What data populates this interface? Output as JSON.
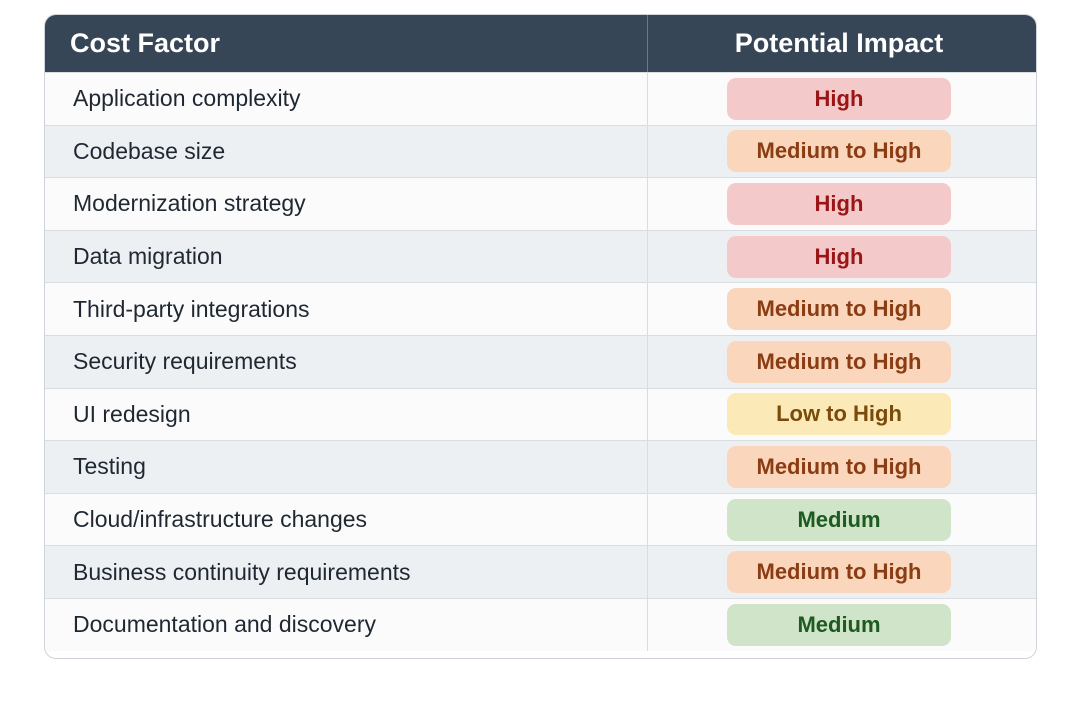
{
  "table": {
    "headers": {
      "factor": "Cost Factor",
      "impact": "Potential Impact"
    },
    "rows": [
      {
        "factor": "Application complexity",
        "impact": "High",
        "level": "high"
      },
      {
        "factor": "Codebase size",
        "impact": "Medium to High",
        "level": "medium-high"
      },
      {
        "factor": "Modernization strategy",
        "impact": "High",
        "level": "high"
      },
      {
        "factor": "Data migration",
        "impact": "High",
        "level": "high"
      },
      {
        "factor": "Third-party integrations",
        "impact": "Medium to High",
        "level": "medium-high"
      },
      {
        "factor": "Security requirements",
        "impact": "Medium to High",
        "level": "medium-high"
      },
      {
        "factor": "UI redesign",
        "impact": "Low to High",
        "level": "low-high"
      },
      {
        "factor": "Testing",
        "impact": "Medium to High",
        "level": "medium-high"
      },
      {
        "factor": "Cloud/infrastructure changes",
        "impact": "Medium",
        "level": "medium"
      },
      {
        "factor": "Business continuity requirements",
        "impact": "Medium to High",
        "level": "medium-high"
      },
      {
        "factor": "Documentation and discovery",
        "impact": "Medium",
        "level": "medium"
      }
    ]
  },
  "colors": {
    "header_bg": "#364656",
    "high_bg": "#f4c9c9",
    "high_text": "#9a1616",
    "medium_high_bg": "#fad6bd",
    "medium_high_text": "#8a3c12",
    "low_high_bg": "#fbeab7",
    "low_high_text": "#7a4a0a",
    "medium_bg": "#cfe4c9",
    "medium_text": "#1e5a21"
  }
}
